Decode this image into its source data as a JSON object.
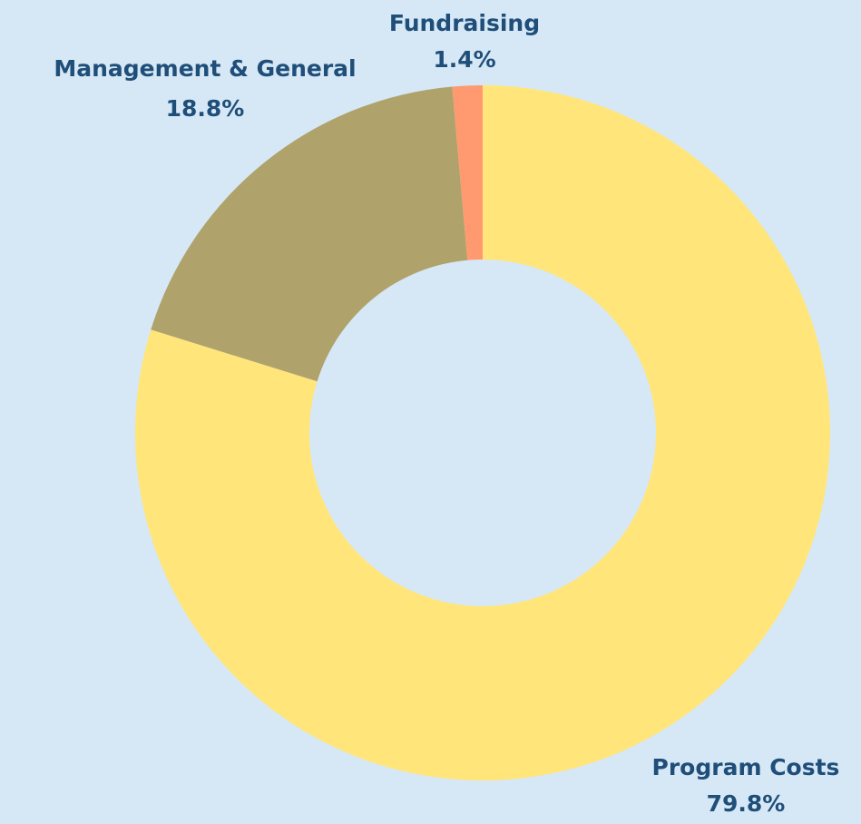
{
  "chart_data": {
    "type": "donut",
    "categories": [
      "Program Costs",
      "Management & General",
      "Fundraising"
    ],
    "values": [
      79.8,
      18.8,
      1.4
    ],
    "value_labels": [
      "79.8%",
      "18.8%",
      "1.4%"
    ],
    "colors": [
      "#ffe57a",
      "#afa36b",
      "#ff9a70"
    ]
  }
}
